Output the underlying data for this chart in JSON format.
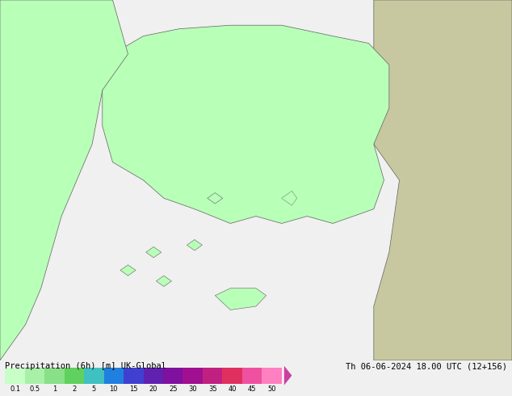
{
  "title_left": "Precipitation (6h) [m] UK-Global",
  "title_right": "Th 06-06-2024 18.00 UTC (12+156)",
  "colorbar_values": [
    0.1,
    0.5,
    1,
    2,
    5,
    10,
    15,
    20,
    25,
    30,
    35,
    40,
    45,
    50
  ],
  "colorbar_colors": [
    "#b0ffb0",
    "#80f080",
    "#50d050",
    "#00b000",
    "#00d0d0",
    "#0080ff",
    "#0000ff",
    "#6000c0",
    "#8000a0",
    "#a00080",
    "#c00060",
    "#e00040",
    "#ff00a0",
    "#ff80c0"
  ],
  "map_bg_colors": {
    "land_green": "#b8ffb8",
    "land_tan": "#c8c8a0",
    "sea_white": "#e8e8e8",
    "border_color": "#606060"
  },
  "fig_width": 6.34,
  "fig_height": 4.9,
  "dpi": 100
}
